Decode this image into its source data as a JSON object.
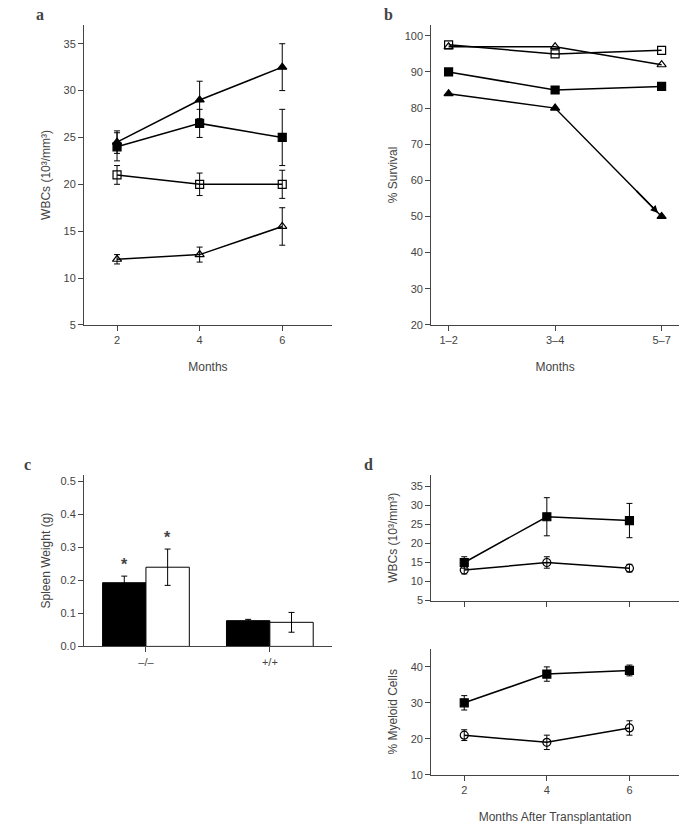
{
  "chart_data": [
    {
      "type": "line",
      "annotations": [
        {
          "text": "a"
        }
      ],
      "xlabel": "Months",
      "ylabel": "WBCs (10³/mm³)",
      "x": [
        2,
        4,
        6
      ],
      "series": [
        {
          "values": [
            24.5,
            29.0,
            32.5
          ],
          "errors": [
            1.2,
            2.0,
            2.5
          ],
          "marker": "triangle-up",
          "color": "black"
        },
        {
          "values": [
            24.0,
            26.5,
            25.0
          ],
          "errors": [
            1.5,
            1.5,
            3.0
          ],
          "marker": "square",
          "color": "black"
        },
        {
          "values": [
            21.0,
            20.0,
            20.0
          ],
          "errors": [
            1.0,
            1.2,
            1.5
          ],
          "marker": "square-open",
          "color": "black"
        },
        {
          "values": [
            12.0,
            12.5,
            15.5
          ],
          "errors": [
            0.5,
            0.8,
            2.0
          ],
          "marker": "triangle-up-open",
          "color": "black"
        }
      ],
      "xlim": [
        1.2,
        7.2
      ],
      "xticks": [
        2,
        4,
        6
      ],
      "ylim": [
        5,
        37
      ],
      "yticks": [
        5,
        10,
        15,
        20,
        25,
        30,
        35
      ],
      "grid": false
    },
    {
      "type": "line",
      "annotations": [
        {
          "text": "b"
        }
      ],
      "xlabel": "Months",
      "ylabel": "% Survival",
      "categories": [
        "1–2",
        "3–4",
        "5–7"
      ],
      "series": [
        {
          "values": [
            97.5,
            95.0,
            96.0
          ],
          "marker": "square-open",
          "color": "black",
          "line_style": "solid"
        },
        {
          "values": [
            97.0,
            97.0,
            92.0
          ],
          "marker": "triangle-up-open",
          "color": "black",
          "line_style": "solid"
        },
        {
          "values": [
            90.0,
            85.0,
            86.0
          ],
          "marker": "square",
          "color": "black",
          "line_style": "solid"
        },
        {
          "values": [
            84.0,
            80.0,
            50.0
          ],
          "marker": "triangle-up",
          "color": "black",
          "line_style": "arrow"
        }
      ],
      "ylim": [
        20,
        103
      ],
      "yticks": [
        20,
        30,
        40,
        50,
        60,
        70,
        80,
        90,
        100
      ],
      "grid": false
    },
    {
      "type": "bar",
      "annotations": [
        {
          "text": "c"
        },
        {
          "text": "*",
          "x": 0,
          "series": 0
        },
        {
          "text": "*",
          "x": 0,
          "series": 1
        }
      ],
      "ylabel": "Spleen Weight (g)",
      "categories": [
        "–/–",
        "+/+"
      ],
      "series": [
        {
          "values": [
            0.193,
            0.078
          ],
          "errors": [
            0.02,
            0.004
          ],
          "color": "black"
        },
        {
          "values": [
            0.24,
            0.073
          ],
          "errors": [
            0.055,
            0.03
          ],
          "color": "white"
        }
      ],
      "ylim": [
        0,
        0.52
      ],
      "yticks": [
        {
          "value": 0,
          "label": "0.0"
        },
        0.1,
        0.2,
        0.3,
        0.4,
        0.5
      ],
      "grid": false
    },
    {
      "type": "line",
      "annotations": [
        {
          "text": "d"
        }
      ],
      "ylabel": "WBCs (10³/mm³)",
      "x": [
        2,
        4,
        6
      ],
      "series": [
        {
          "values": [
            15.0,
            27.0,
            26.0
          ],
          "errors": [
            1.5,
            5.0,
            4.5
          ],
          "marker": "square",
          "color": "black"
        },
        {
          "values": [
            13.0,
            15.0,
            13.5
          ],
          "errors": [
            1.0,
            1.5,
            1.0
          ],
          "marker": "circle-open",
          "color": "black"
        }
      ],
      "xlim": [
        1.2,
        7.2
      ],
      "xticks": [
        2,
        4,
        6
      ],
      "tick_labels": "y",
      "ylim": [
        5,
        38
      ],
      "yticks": [
        5,
        10,
        15,
        20,
        25,
        30,
        35
      ],
      "grid": false
    },
    {
      "type": "line",
      "ylabel": "% Myeloid Cells",
      "xlabel": "Months After Transplantation",
      "x": [
        2,
        4,
        6
      ],
      "series": [
        {
          "values": [
            30.0,
            38.0,
            39.0
          ],
          "errors": [
            2.0,
            2.0,
            1.5
          ],
          "marker": "square",
          "color": "black"
        },
        {
          "values": [
            21.0,
            19.0,
            23.0
          ],
          "errors": [
            1.5,
            2.0,
            2.0
          ],
          "marker": "circle-open",
          "color": "black"
        }
      ],
      "xlim": [
        1.2,
        7.2
      ],
      "xticks": [
        2,
        4,
        6
      ],
      "ylim": [
        10,
        45
      ],
      "yticks": [
        10,
        20,
        30,
        40
      ],
      "grid": false
    }
  ]
}
